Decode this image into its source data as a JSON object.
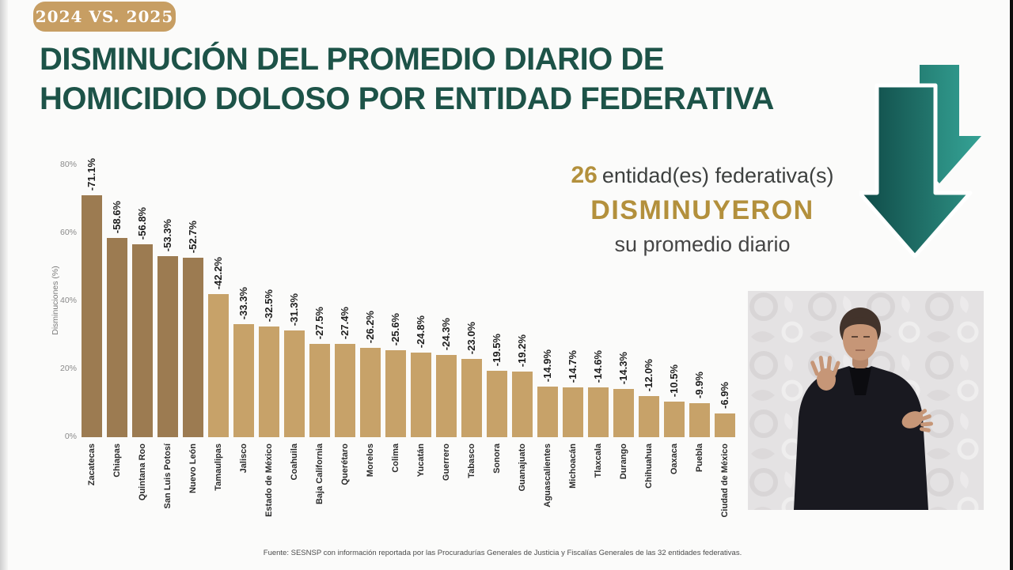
{
  "badge": {
    "label": "2024 VS. 2025"
  },
  "title": {
    "line1": "DISMINUCIÓN DEL PROMEDIO DIARIO DE",
    "line2": "HOMICIDIO DOLOSO POR ENTIDAD FEDERATIVA"
  },
  "highlight": {
    "count": "26",
    "entities_text": "entidad(es) federativa(s)",
    "emphasis": "DISMINUYERON",
    "subtitle": "su promedio diario"
  },
  "chart_data": {
    "type": "bar",
    "ylabel": "Disminuciones (%)",
    "ylim": [
      0,
      80
    ],
    "grid": false,
    "yticks": [
      {
        "label": "0%",
        "value": 0
      },
      {
        "label": "20%",
        "value": 20
      },
      {
        "label": "40%",
        "value": 40
      },
      {
        "label": "60%",
        "value": 60
      },
      {
        "label": "80%",
        "value": 80
      }
    ],
    "categories": [
      "Zacatecas",
      "Chiapas",
      "Quintana Roo",
      "San Luis Potosí",
      "Nuevo León",
      "Tamaulipas",
      "Jalisco",
      "Estado de México",
      "Coahuila",
      "Baja California",
      "Querétaro",
      "Morelos",
      "Colima",
      "Yucatán",
      "Guerrero",
      "Tabasco",
      "Sonora",
      "Guanajuato",
      "Aguascalientes",
      "Michoacán",
      "Tlaxcala",
      "Durango",
      "Chihuahua",
      "Oaxaca",
      "Puebla",
      "Ciudad de México"
    ],
    "values": [
      -71.1,
      -58.6,
      -56.8,
      -53.3,
      -52.7,
      -42.2,
      -33.3,
      -32.5,
      -31.3,
      -27.5,
      -27.4,
      -26.2,
      -25.6,
      -24.8,
      -24.3,
      -23.0,
      -19.5,
      -19.2,
      -14.9,
      -14.7,
      -14.6,
      -14.3,
      -12.0,
      -10.5,
      -9.9,
      -6.9
    ],
    "bar_labels": [
      "-71.1%",
      "-58.6%",
      "-56.8%",
      "-53.3%",
      "-52.7%",
      "-42.2%",
      "-33.3%",
      "-32.5%",
      "-31.3%",
      "-27.5%",
      "-27.4%",
      "-26.2%",
      "-25.6%",
      "-24.8%",
      "-24.3%",
      "-23.0%",
      "-19.5%",
      "-19.2%",
      "-14.9%",
      "-14.7%",
      "-14.6%",
      "-14.3%",
      "-12.0%",
      "-10.5%",
      "-9.9%",
      "-6.9%"
    ],
    "bar_color_dark": "#9c7b51",
    "bar_color_light": "#c7a269",
    "dark_bar_count": 5
  },
  "footer": {
    "source": "Fuente: SESNSP con información reportada por las Procuradurías Generales de Justicia y Fiscalías Generales de las 32 entidades federativas."
  },
  "colors": {
    "title_green": "#1d5348",
    "gold": "#b3903c",
    "badge_tan": "#c79e63",
    "arrow_dark": "#0f4a47",
    "arrow_light": "#35a295"
  }
}
